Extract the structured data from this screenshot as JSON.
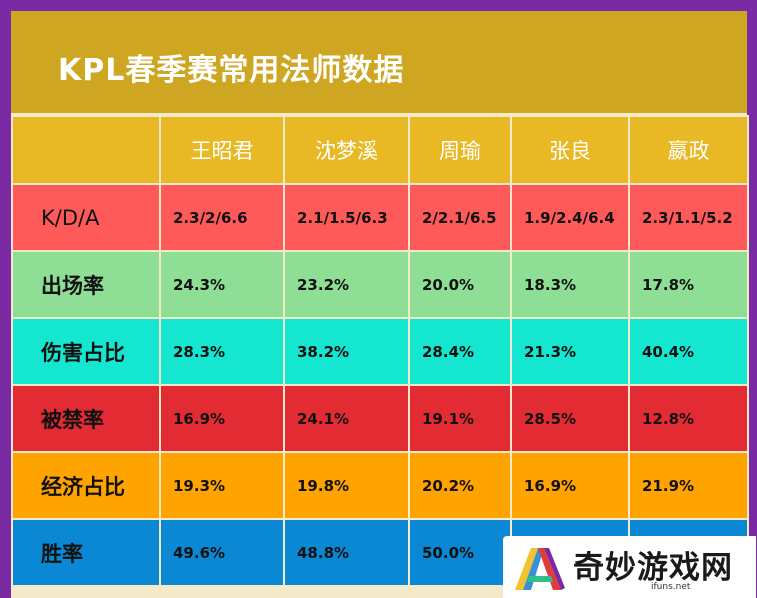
{
  "title": "KPL春季赛常用法师数据",
  "columns": [
    "王昭君",
    "沈梦溪",
    "周瑜",
    "张良",
    "嬴政"
  ],
  "rows": [
    {
      "label": "K/D/A",
      "color": "#fe5a5a",
      "values": [
        "2.3/2/6.6",
        "2.1/1.5/6.3",
        "2/2.1/6.5",
        "1.9/2.4/6.4",
        "2.3/1.1/5.2"
      ]
    },
    {
      "label": "出场率",
      "color": "#8fde96",
      "values": [
        "24.3%",
        "23.2%",
        "20.0%",
        "18.3%",
        "17.8%"
      ]
    },
    {
      "label": "伤害占比",
      "color": "#15e6cf",
      "values": [
        "28.3%",
        "38.2%",
        "28.4%",
        "21.3%",
        "40.4%"
      ]
    },
    {
      "label": "被禁率",
      "color": "#e22b33",
      "values": [
        "16.9%",
        "24.1%",
        "19.1%",
        "28.5%",
        "12.8%"
      ]
    },
    {
      "label": "经济占比",
      "color": "#fea300",
      "values": [
        "19.3%",
        "19.8%",
        "20.2%",
        "16.9%",
        "21.9%"
      ]
    },
    {
      "label": "胜率",
      "color": "#0a88d3",
      "values": [
        "49.6%",
        "48.8%",
        "50.0%",
        "",
        ""
      ]
    }
  ],
  "watermark": {
    "text": "奇妙游戏网",
    "url": "ifuns.net",
    "logo_icon": "colorful-a-logo-icon"
  }
}
